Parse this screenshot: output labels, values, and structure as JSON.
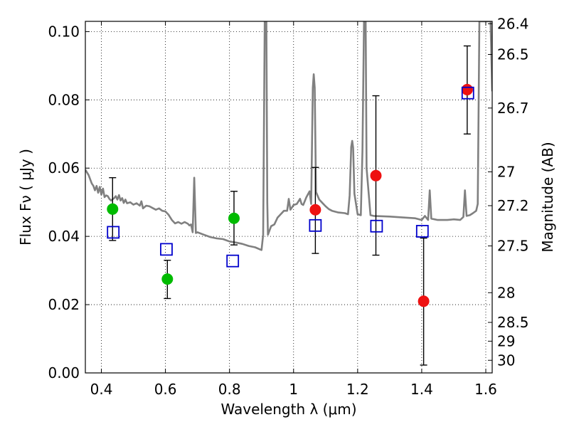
{
  "chart_data": {
    "type": "scatter",
    "xlabel": "Wavelength  λ (μm)",
    "ylabel": "Flux  Fν  ( μJy )",
    "ylabel_right": "Magnitude (AB)",
    "xlim": [
      0.35,
      1.62
    ],
    "ylim": [
      0,
      0.103
    ],
    "grid": true,
    "x_ticks": [
      0.4,
      0.6,
      0.8,
      1.0,
      1.2,
      1.4,
      1.6
    ],
    "x_tick_labels": [
      "0.4",
      "0.6",
      "0.8",
      "1",
      "1.2",
      "1.4",
      "1.6"
    ],
    "y_ticks": [
      0.0,
      0.02,
      0.04,
      0.06,
      0.08,
      0.1
    ],
    "y_tick_labels": [
      "0.00",
      "0.02",
      "0.04",
      "0.06",
      "0.08",
      "0.10"
    ],
    "right_ticks": [
      {
        "label": "26.4",
        "flux": 0.1023
      },
      {
        "label": "26.5",
        "flux": 0.0933
      },
      {
        "label": "26.7",
        "flux": 0.0776
      },
      {
        "label": "27",
        "flux": 0.0589
      },
      {
        "label": "27.2",
        "flux": 0.049
      },
      {
        "label": "27.5",
        "flux": 0.0372
      },
      {
        "label": "28",
        "flux": 0.0235
      },
      {
        "label": "28.5",
        "flux": 0.0148
      },
      {
        "label": "29",
        "flux": 0.0093
      },
      {
        "label": "30",
        "flux": 0.0037
      }
    ],
    "series": [
      {
        "color": "#00bb00",
        "marker": "circle",
        "points": [
          {
            "x": 0.435,
            "y": 0.048,
            "yerr_low": 0.0388,
            "yerr_high": 0.0572
          },
          {
            "x": 0.606,
            "y": 0.0275,
            "yerr_low": 0.0218,
            "yerr_high": 0.033
          },
          {
            "x": 0.814,
            "y": 0.0453,
            "yerr_low": 0.0375,
            "yerr_high": 0.0532
          }
        ]
      },
      {
        "color": "#ee1111",
        "marker": "circle",
        "points": [
          {
            "x": 1.068,
            "y": 0.0478,
            "yerr_low": 0.035,
            "yerr_high": 0.0602
          },
          {
            "x": 1.257,
            "y": 0.0578,
            "yerr_low": 0.0345,
            "yerr_high": 0.0812
          },
          {
            "x": 1.406,
            "y": 0.021,
            "yerr_low": 0.0023,
            "yerr_high": 0.0395
          },
          {
            "x": 1.542,
            "y": 0.083,
            "yerr_low": 0.07,
            "yerr_high": 0.0958
          }
        ]
      },
      {
        "color": "#0000cc",
        "marker": "open-square",
        "points": [
          {
            "x": 0.437,
            "y": 0.0412
          },
          {
            "x": 0.603,
            "y": 0.0362
          },
          {
            "x": 0.81,
            "y": 0.0328
          },
          {
            "x": 1.068,
            "y": 0.0432
          },
          {
            "x": 1.259,
            "y": 0.043
          },
          {
            "x": 1.402,
            "y": 0.0415
          },
          {
            "x": 1.544,
            "y": 0.082
          }
        ]
      }
    ],
    "model_spectrum": {
      "color": "#808080",
      "points": [
        [
          0.35,
          0.0595
        ],
        [
          0.36,
          0.058
        ],
        [
          0.37,
          0.0555
        ],
        [
          0.375,
          0.0548
        ],
        [
          0.38,
          0.0535
        ],
        [
          0.385,
          0.0548
        ],
        [
          0.39,
          0.0528
        ],
        [
          0.395,
          0.0545
        ],
        [
          0.4,
          0.0522
        ],
        [
          0.405,
          0.054
        ],
        [
          0.41,
          0.0515
        ],
        [
          0.415,
          0.052
        ],
        [
          0.42,
          0.0518
        ],
        [
          0.425,
          0.051
        ],
        [
          0.43,
          0.0505
        ],
        [
          0.44,
          0.0512
        ],
        [
          0.445,
          0.0518
        ],
        [
          0.45,
          0.0508
        ],
        [
          0.455,
          0.0521
        ],
        [
          0.46,
          0.0505
        ],
        [
          0.465,
          0.0512
        ],
        [
          0.47,
          0.0498
        ],
        [
          0.475,
          0.0508
        ],
        [
          0.48,
          0.0497
        ],
        [
          0.49,
          0.05
        ],
        [
          0.5,
          0.0493
        ],
        [
          0.51,
          0.0497
        ],
        [
          0.52,
          0.049
        ],
        [
          0.525,
          0.0503
        ],
        [
          0.53,
          0.0482
        ],
        [
          0.54,
          0.049
        ],
        [
          0.55,
          0.0488
        ],
        [
          0.56,
          0.0483
        ],
        [
          0.57,
          0.0478
        ],
        [
          0.58,
          0.0482
        ],
        [
          0.59,
          0.0475
        ],
        [
          0.6,
          0.0473
        ],
        [
          0.61,
          0.0463
        ],
        [
          0.62,
          0.0448
        ],
        [
          0.63,
          0.0438
        ],
        [
          0.64,
          0.0442
        ],
        [
          0.65,
          0.0437
        ],
        [
          0.66,
          0.0442
        ],
        [
          0.67,
          0.0437
        ],
        [
          0.675,
          0.0432
        ],
        [
          0.68,
          0.0435
        ],
        [
          0.685,
          0.0412
        ],
        [
          0.69,
          0.0572
        ],
        [
          0.695,
          0.041
        ],
        [
          0.7,
          0.0412
        ],
        [
          0.72,
          0.0405
        ],
        [
          0.74,
          0.0398
        ],
        [
          0.76,
          0.0394
        ],
        [
          0.78,
          0.0392
        ],
        [
          0.8,
          0.0385
        ],
        [
          0.82,
          0.0382
        ],
        [
          0.84,
          0.0378
        ],
        [
          0.86,
          0.0372
        ],
        [
          0.88,
          0.0368
        ],
        [
          0.895,
          0.0362
        ],
        [
          0.9,
          0.036
        ],
        [
          0.905,
          0.0405
        ],
        [
          0.91,
          0.103
        ],
        [
          0.915,
          0.103
        ],
        [
          0.918,
          0.05
        ],
        [
          0.92,
          0.0405
        ],
        [
          0.93,
          0.043
        ],
        [
          0.94,
          0.0435
        ],
        [
          0.95,
          0.0455
        ],
        [
          0.96,
          0.0465
        ],
        [
          0.97,
          0.0475
        ],
        [
          0.98,
          0.0475
        ],
        [
          0.985,
          0.051
        ],
        [
          0.99,
          0.0478
        ],
        [
          1.0,
          0.0492
        ],
        [
          1.01,
          0.0495
        ],
        [
          1.02,
          0.051
        ],
        [
          1.025,
          0.0495
        ],
        [
          1.03,
          0.0492
        ],
        [
          1.04,
          0.0515
        ],
        [
          1.05,
          0.0532
        ],
        [
          1.055,
          0.0495
        ],
        [
          1.06,
          0.0835
        ],
        [
          1.063,
          0.0875
        ],
        [
          1.066,
          0.0835
        ],
        [
          1.07,
          0.053
        ],
        [
          1.08,
          0.0508
        ],
        [
          1.09,
          0.0498
        ],
        [
          1.1,
          0.0488
        ],
        [
          1.11,
          0.048
        ],
        [
          1.12,
          0.0475
        ],
        [
          1.14,
          0.047
        ],
        [
          1.16,
          0.0468
        ],
        [
          1.17,
          0.0465
        ],
        [
          1.175,
          0.052
        ],
        [
          1.18,
          0.0662
        ],
        [
          1.183,
          0.068
        ],
        [
          1.186,
          0.066
        ],
        [
          1.19,
          0.0525
        ],
        [
          1.2,
          0.0465
        ],
        [
          1.21,
          0.0462
        ],
        [
          1.215,
          0.065
        ],
        [
          1.22,
          0.103
        ],
        [
          1.225,
          0.103
        ],
        [
          1.228,
          0.06
        ],
        [
          1.24,
          0.0462
        ],
        [
          1.25,
          0.046
        ],
        [
          1.3,
          0.0458
        ],
        [
          1.35,
          0.0455
        ],
        [
          1.38,
          0.0453
        ],
        [
          1.4,
          0.0448
        ],
        [
          1.41,
          0.046
        ],
        [
          1.42,
          0.0448
        ],
        [
          1.425,
          0.0535
        ],
        [
          1.43,
          0.0452
        ],
        [
          1.45,
          0.0448
        ],
        [
          1.48,
          0.0448
        ],
        [
          1.5,
          0.045
        ],
        [
          1.52,
          0.0448
        ],
        [
          1.53,
          0.0457
        ],
        [
          1.535,
          0.0535
        ],
        [
          1.54,
          0.046
        ],
        [
          1.55,
          0.0462
        ],
        [
          1.56,
          0.0468
        ],
        [
          1.57,
          0.0475
        ],
        [
          1.575,
          0.0495
        ],
        [
          1.58,
          0.103
        ],
        [
          1.59,
          0.103
        ],
        [
          1.6,
          0.103
        ],
        [
          1.615,
          0.103
        ],
        [
          1.62,
          0.0825
        ]
      ]
    }
  }
}
